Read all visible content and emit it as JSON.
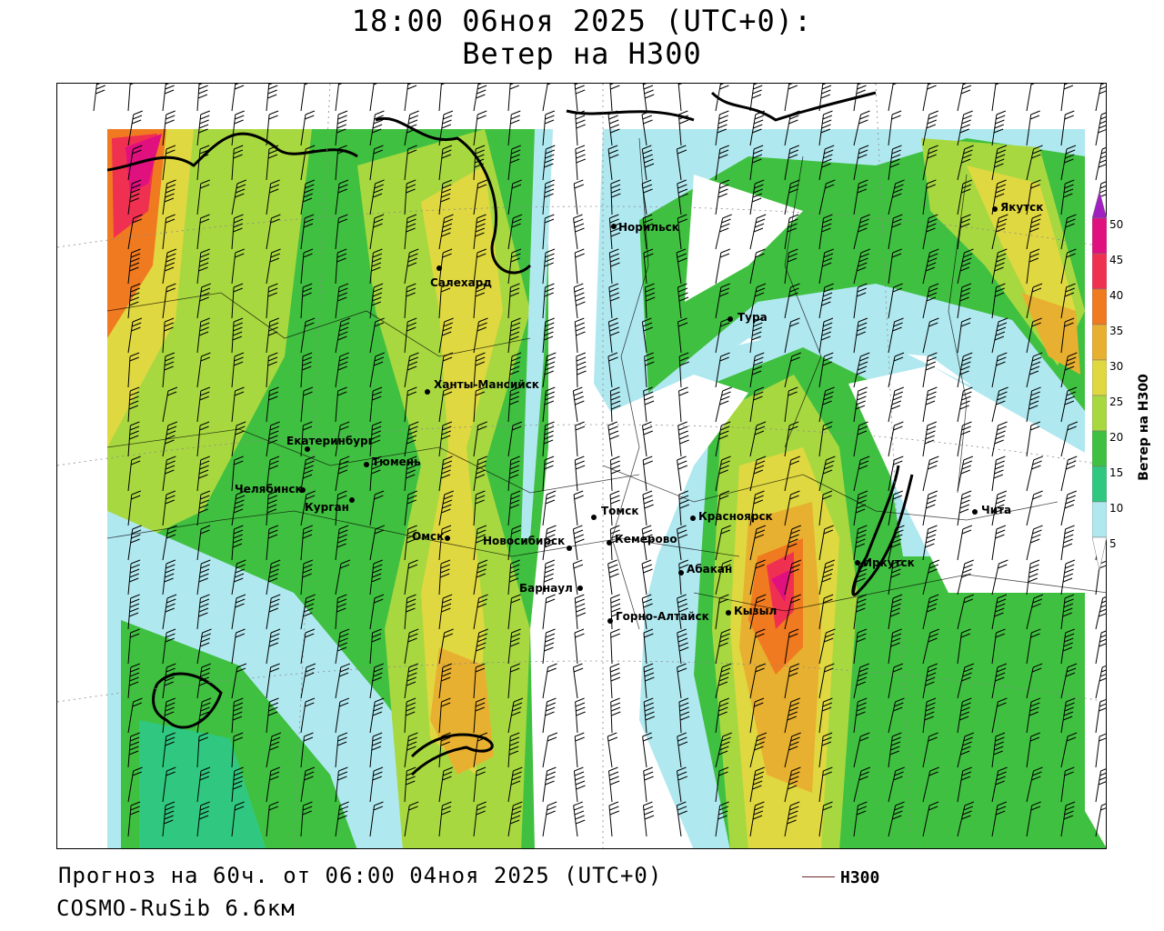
{
  "title": {
    "line1": "18:00 06ноя 2025 (UTC+0):",
    "line2": "Ветер на H300"
  },
  "footer": {
    "forecast": "Прогноз на 60ч. от 06:00 04ноя 2025 (UTC+0)",
    "model": "COSMO-RuSib 6.6км"
  },
  "legend": {
    "line_label": "H300",
    "line_color": "#6b2a2a"
  },
  "colorbar": {
    "label": "Ветер на H300",
    "ticks": [
      "50",
      "45",
      "40",
      "35",
      "30",
      "25",
      "20",
      "15",
      "10",
      "5"
    ],
    "colors": [
      "#a020c0",
      "#e0107f",
      "#f03050",
      "#f07a20",
      "#e8b030",
      "#e0d840",
      "#a8d840",
      "#40c040",
      "#30c880",
      "#b0e8f0",
      "#ffffff"
    ]
  },
  "cities": [
    {
      "name": "Якутск"
    },
    {
      "name": "Норильск"
    },
    {
      "name": "Салехард"
    },
    {
      "name": "Тура"
    },
    {
      "name": "Ханты-Мансийск"
    },
    {
      "name": "Екатеринбург"
    },
    {
      "name": "Тюмень"
    },
    {
      "name": "Челябинск"
    },
    {
      "name": "Курган"
    },
    {
      "name": "Томск"
    },
    {
      "name": "Красноярск"
    },
    {
      "name": "Чита"
    },
    {
      "name": "Омск"
    },
    {
      "name": "Новосибирск"
    },
    {
      "name": "Кемерово"
    },
    {
      "name": "Абакан"
    },
    {
      "name": "Иркутск"
    },
    {
      "name": "Барнаул"
    },
    {
      "name": "Горно-Алтайск"
    },
    {
      "name": "Кызыл"
    }
  ]
}
